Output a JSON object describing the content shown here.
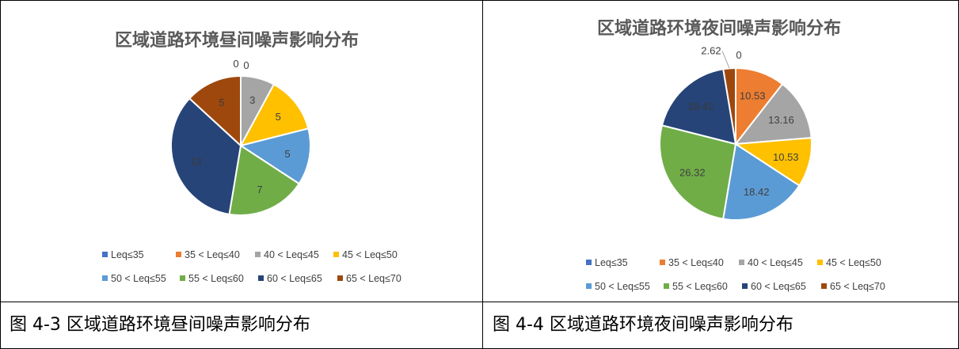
{
  "colors": {
    "Leq≤35": "#4472c4",
    "35 < Leq≤40": "#ed7d31",
    "40 < Leq≤45": "#a5a5a5",
    "45 < Leq≤50": "#ffc000",
    "50 < Leq≤55": "#5b9bd5",
    "55 < Leq≤60": "#70ad47",
    "60 < Leq≤65": "#264478",
    "65 < Leq≤70": "#9e480e"
  },
  "chart_data": [
    {
      "type": "pie",
      "title": "区域道路环境昼间噪声影响分布",
      "categories": [
        "Leq≤35",
        "35 < Leq≤40",
        "40 < Leq≤45",
        "45 < Leq≤50",
        "50 < Leq≤55",
        "55 < Leq≤60",
        "60 < Leq≤65",
        "65 < Leq≤70"
      ],
      "values": [
        0,
        0,
        3,
        5,
        5,
        7,
        13,
        5
      ],
      "data_labels": [
        "0",
        "0",
        "3",
        "5",
        "5",
        "7",
        "13",
        "5"
      ],
      "legend_position": "bottom"
    },
    {
      "type": "pie",
      "title": "区域道路环境夜间噪声影响分布",
      "categories": [
        "Leq≤35",
        "35 < Leq≤40",
        "40 < Leq≤45",
        "45 < Leq≤50",
        "50 < Leq≤55",
        "55 < Leq≤60",
        "60 < Leq≤65",
        "65 < Leq≤70"
      ],
      "values": [
        0,
        10.53,
        13.16,
        10.53,
        18.42,
        26.32,
        18.42,
        2.62
      ],
      "data_labels": [
        "0",
        "10.53",
        "13.16",
        "10.53",
        "18.42",
        "26.32",
        "18.42",
        "2.62"
      ],
      "legend_position": "bottom"
    }
  ],
  "captions": {
    "left": "图 4-3 区域道路环境昼间噪声影响分布",
    "right": "图 4-4 区域道路环境夜间噪声影响分布"
  }
}
